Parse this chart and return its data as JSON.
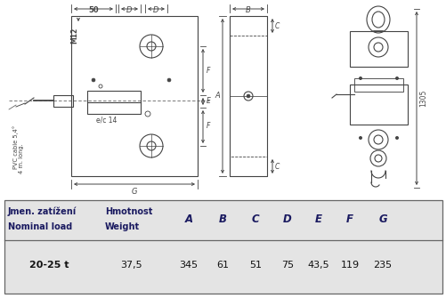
{
  "table_header_row1": [
    "Jmen. zatížení",
    "Hmotnost",
    "A",
    "B",
    "C",
    "D",
    "E",
    "F",
    "G"
  ],
  "table_header_row2": [
    "Nominal load",
    "Weight",
    "",
    "",
    "",
    "",
    "",
    "",
    ""
  ],
  "table_data": [
    "20-25 t",
    "37,5",
    "345",
    "61",
    "51",
    "75",
    "43,5",
    "119",
    "235"
  ],
  "table_bg": "#e8e8e8",
  "header_color": "#1a1a60",
  "line_color": "#444444",
  "dim_color": "#333333",
  "cable_label1": "PVC cable 5,4°",
  "cable_label2": "4 m. long.",
  "ec_label": "e/c 14",
  "m12_label": "M12",
  "dim_50": "50",
  "dim_D": "D",
  "dim_G": "G",
  "dim_A": "A",
  "dim_B": "B",
  "dim_C": "C",
  "dim_E": "E",
  "dim_F": "F",
  "dim_1305": "1305"
}
